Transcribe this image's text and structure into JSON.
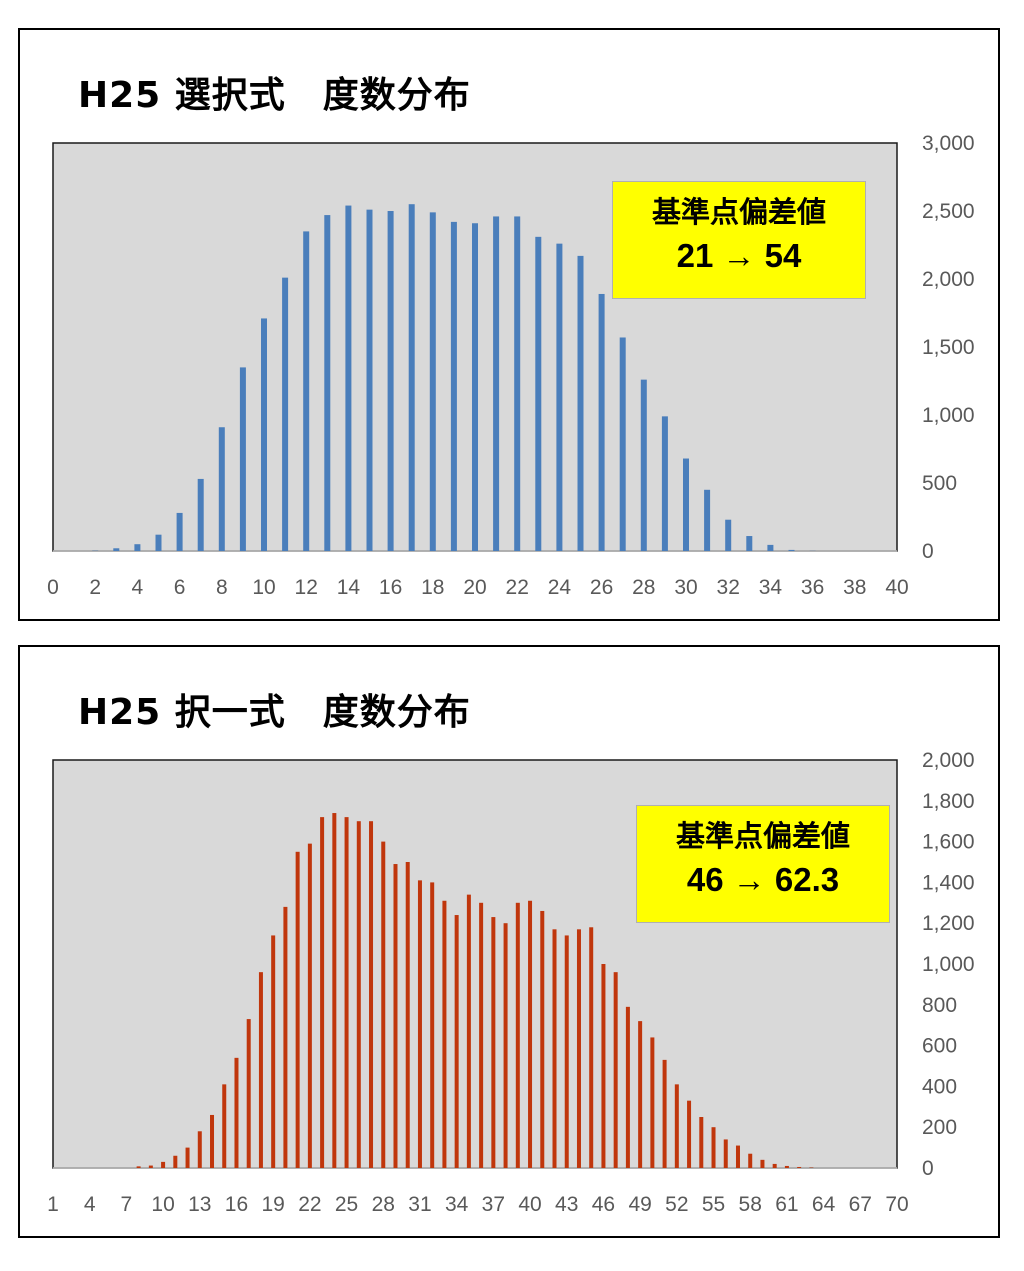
{
  "charts": [
    {
      "title": "H25 選択式　度数分布",
      "annotation": {
        "line1": "基準点偏差値",
        "line2": "21 → 54"
      },
      "color": "#4a7ebb",
      "chart_data": {
        "type": "bar",
        "title": "H25 選択式　度数分布",
        "xlabel": "",
        "ylabel": "",
        "x": [
          0,
          1,
          2,
          3,
          4,
          5,
          6,
          7,
          8,
          9,
          10,
          11,
          12,
          13,
          14,
          15,
          16,
          17,
          18,
          19,
          20,
          21,
          22,
          23,
          24,
          25,
          26,
          27,
          28,
          29,
          30,
          31,
          32,
          33,
          34,
          35,
          36,
          37,
          38,
          39,
          40
        ],
        "values": [
          0,
          0,
          2,
          20,
          50,
          120,
          280,
          530,
          910,
          1350,
          1710,
          2010,
          2350,
          2470,
          2540,
          2510,
          2500,
          2550,
          2490,
          2420,
          2410,
          2460,
          2460,
          2310,
          2260,
          2170,
          1890,
          1570,
          1260,
          990,
          680,
          450,
          230,
          110,
          45,
          8,
          1,
          0,
          0,
          0,
          0
        ],
        "xlim": [
          0,
          40
        ],
        "ylim": [
          0,
          3000
        ],
        "x_ticks": [
          "0",
          "2",
          "4",
          "6",
          "8",
          "10",
          "12",
          "14",
          "16",
          "18",
          "20",
          "22",
          "24",
          "26",
          "28",
          "30",
          "32",
          "34",
          "36",
          "38",
          "40"
        ],
        "y_ticks": [
          "0",
          "500",
          "1,000",
          "1,500",
          "2,000",
          "2,500",
          "3,000"
        ],
        "y_axis_position": "right",
        "grid": false,
        "plot_background": "#d9d9d9"
      }
    },
    {
      "title": "H25 択一式　度数分布",
      "annotation": {
        "line1": "基準点偏差値",
        "line2": "46 → 62.3"
      },
      "color": "#c0360c",
      "chart_data": {
        "type": "bar",
        "title": "H25 択一式　度数分布",
        "xlabel": "",
        "ylabel": "",
        "x": [
          1,
          2,
          3,
          4,
          5,
          6,
          7,
          8,
          9,
          10,
          11,
          12,
          13,
          14,
          15,
          16,
          17,
          18,
          19,
          20,
          21,
          22,
          23,
          24,
          25,
          26,
          27,
          28,
          29,
          30,
          31,
          32,
          33,
          34,
          35,
          36,
          37,
          38,
          39,
          40,
          41,
          42,
          43,
          44,
          45,
          46,
          47,
          48,
          49,
          50,
          51,
          52,
          53,
          54,
          55,
          56,
          57,
          58,
          59,
          60,
          61,
          62,
          63,
          64,
          65,
          66,
          67,
          68,
          69,
          70
        ],
        "values": [
          0,
          0,
          0,
          0,
          0,
          0,
          0,
          8,
          12,
          30,
          60,
          100,
          180,
          260,
          410,
          540,
          730,
          960,
          1140,
          1280,
          1550,
          1590,
          1720,
          1740,
          1720,
          1700,
          1700,
          1600,
          1490,
          1500,
          1410,
          1400,
          1310,
          1240,
          1340,
          1300,
          1230,
          1200,
          1300,
          1310,
          1260,
          1170,
          1140,
          1170,
          1180,
          1000,
          960,
          790,
          720,
          640,
          530,
          410,
          330,
          250,
          200,
          140,
          110,
          70,
          40,
          20,
          10,
          5,
          2,
          0,
          0,
          0,
          0,
          0,
          0,
          0
        ],
        "xlim": [
          1,
          70
        ],
        "ylim": [
          0,
          2000
        ],
        "x_ticks": [
          "1",
          "4",
          "7",
          "10",
          "13",
          "16",
          "19",
          "22",
          "25",
          "28",
          "31",
          "34",
          "37",
          "40",
          "43",
          "46",
          "49",
          "52",
          "55",
          "58",
          "61",
          "64",
          "67",
          "70"
        ],
        "y_ticks": [
          "0",
          "200",
          "400",
          "600",
          "800",
          "1,000",
          "1,200",
          "1,400",
          "1,600",
          "1,800",
          "2,000"
        ],
        "y_axis_position": "right",
        "grid": false,
        "plot_background": "#d9d9d9"
      }
    }
  ]
}
